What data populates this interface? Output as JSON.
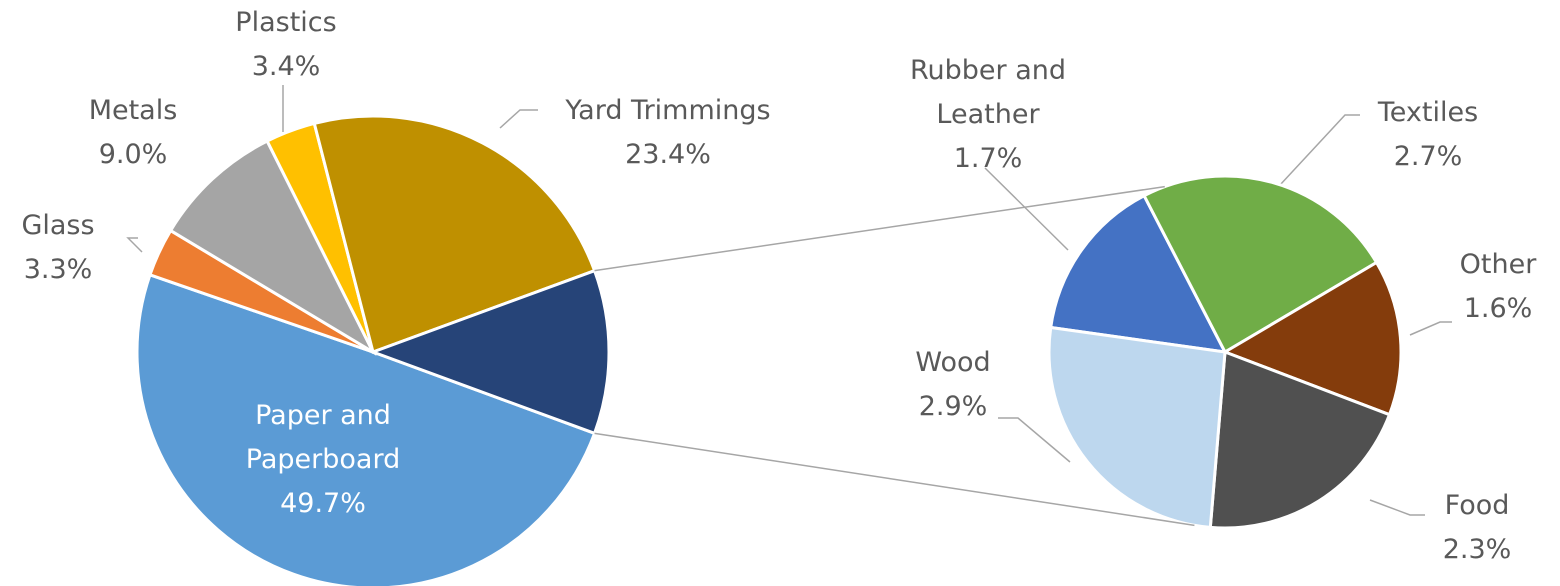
{
  "chart_data": [
    {
      "type": "pie",
      "categories": [
        "Paper and Paperboard",
        "Glass",
        "Metals",
        "Plastics",
        "Yard Trimmings",
        null
      ],
      "values": [
        49.7,
        3.3,
        9.0,
        3.4,
        23.4,
        11.2
      ],
      "value_labels": [
        "49.7%",
        "3.3%",
        "9.0%",
        "3.4%",
        "23.4%",
        null
      ],
      "colors": [
        "#5b9bd5",
        "#ed7d31",
        "#a5a5a5",
        "#ffc000",
        "#bf9000",
        "#264478"
      ]
    },
    {
      "type": "pie",
      "categories": [
        "Rubber and Leather",
        "Textiles",
        "Other",
        "Food",
        "Wood"
      ],
      "values": [
        1.7,
        2.7,
        1.6,
        2.3,
        2.9
      ],
      "value_labels": [
        "1.7%",
        "2.7%",
        "1.6%",
        "2.3%",
        "2.9%"
      ],
      "colors": [
        "#4472c4",
        "#70ad47",
        "#843c0c",
        "#505050",
        "#bdd7ee"
      ]
    }
  ]
}
